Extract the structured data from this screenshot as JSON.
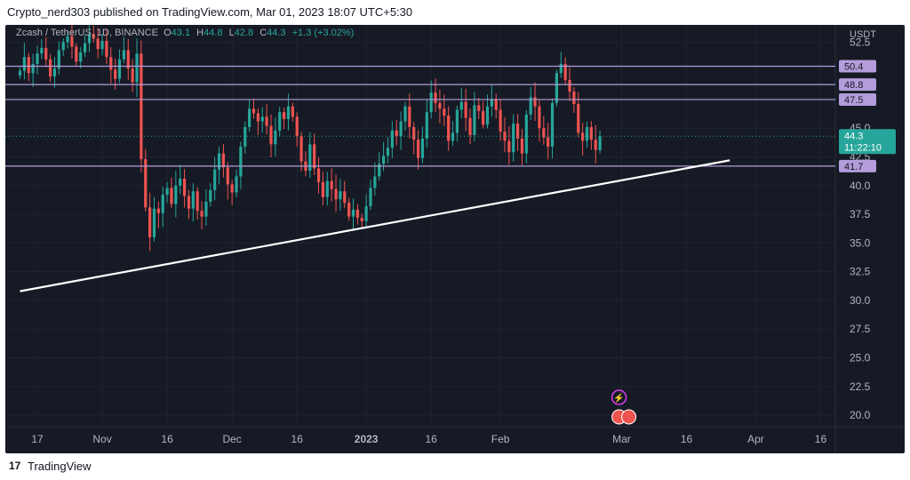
{
  "header": {
    "text": "Crypto_nerd303 published on TradingView.com, Mar 01, 2023 18:07 UTC+5:30"
  },
  "legend": {
    "symbol": "Zcash / TetherUS, 1D, BINANCE",
    "o_label": "O",
    "o": "43.1",
    "h_label": "H",
    "h": "44.8",
    "l_label": "L",
    "l": "42.8",
    "c_label": "C",
    "c": "44.3",
    "change": "+1.3 (+3.02%)"
  },
  "footer": {
    "logo": "17",
    "brand": "TradingView"
  },
  "colors": {
    "background": "#161a25",
    "up": "#26a69a",
    "down": "#ef5350",
    "level_line": "#b39ddb",
    "trendline": "#ffffff",
    "axis_text": "#b2b5be"
  },
  "chart_data": {
    "type": "candlestick",
    "currency": "USDT",
    "ylim": [
      19,
      54
    ],
    "y_ticks": [
      "52.5",
      "45.0",
      "42.5",
      "40.0",
      "37.5",
      "35.0",
      "32.5",
      "30.0",
      "27.5",
      "25.0",
      "22.5",
      "20.0"
    ],
    "x_ticks": [
      "17",
      "Nov",
      "16",
      "Dec",
      "16",
      "2023",
      "16",
      "Feb",
      "Mar",
      "16",
      "Apr",
      "16"
    ],
    "x_tick_dates": [
      "2022-10-17",
      "2022-11-01",
      "2022-11-16",
      "2022-12-01",
      "2022-12-16",
      "2023-01-01",
      "2023-01-16",
      "2023-02-01",
      "2023-03-01",
      "2023-03-16",
      "2023-04-01",
      "2023-04-16"
    ],
    "horizontal_levels": [
      "50.4",
      "48.8",
      "47.5",
      "41.7"
    ],
    "current_price": {
      "value": "44.3",
      "countdown": "11:22:10"
    },
    "trendline": {
      "start": [
        "2022-10-13",
        30.8
      ],
      "end": [
        "2023-03-26",
        42.2
      ]
    },
    "last_candle": {
      "open": 43.1,
      "high": 44.8,
      "low": 42.8,
      "close": 44.3
    },
    "daily_closes": [
      50.0,
      51.2,
      49.8,
      50.6,
      51.5,
      52.0,
      51.0,
      49.5,
      50.2,
      51.8,
      52.5,
      53.0,
      52.1,
      50.8,
      51.6,
      52.4,
      53.2,
      52.8,
      51.9,
      52.6,
      51.2,
      50.1,
      49.3,
      51.0,
      51.8,
      50.2,
      49.0,
      51.5,
      42.3,
      38.1,
      35.5,
      38.0,
      37.6,
      39.2,
      39.8,
      38.4,
      40.0,
      40.6,
      39.1,
      38.0,
      39.5,
      37.8,
      37.3,
      38.6,
      39.6,
      41.4,
      42.8,
      41.6,
      40.1,
      39.4,
      40.8,
      43.4,
      45.1,
      46.7,
      46.3,
      45.6,
      46.0,
      45.2,
      43.6,
      44.8,
      46.4,
      45.8,
      46.9,
      46.0,
      44.3,
      42.1,
      41.3,
      43.6,
      41.5,
      40.3,
      39.0,
      40.4,
      39.7,
      38.8,
      39.5,
      38.5,
      37.3,
      37.9,
      37.2,
      36.9,
      38.2,
      39.8,
      40.8,
      41.9,
      42.6,
      43.3,
      44.8,
      44.3,
      45.6,
      46.9,
      45.1,
      44.0,
      42.4,
      44.1,
      46.4,
      48.1,
      47.2,
      46.7,
      46.1,
      43.9,
      44.6,
      46.6,
      47.3,
      45.9,
      44.4,
      47.0,
      46.5,
      45.3,
      46.9,
      47.5,
      46.6,
      44.7,
      43.9,
      42.9,
      45.4,
      44.1,
      42.8,
      46.2,
      47.7,
      46.9,
      45.0,
      44.2,
      43.4,
      47.2,
      49.8,
      50.6,
      49.2,
      48.2,
      47.1,
      44.6,
      43.9,
      45.1,
      44.0,
      43.1,
      44.3
    ]
  }
}
